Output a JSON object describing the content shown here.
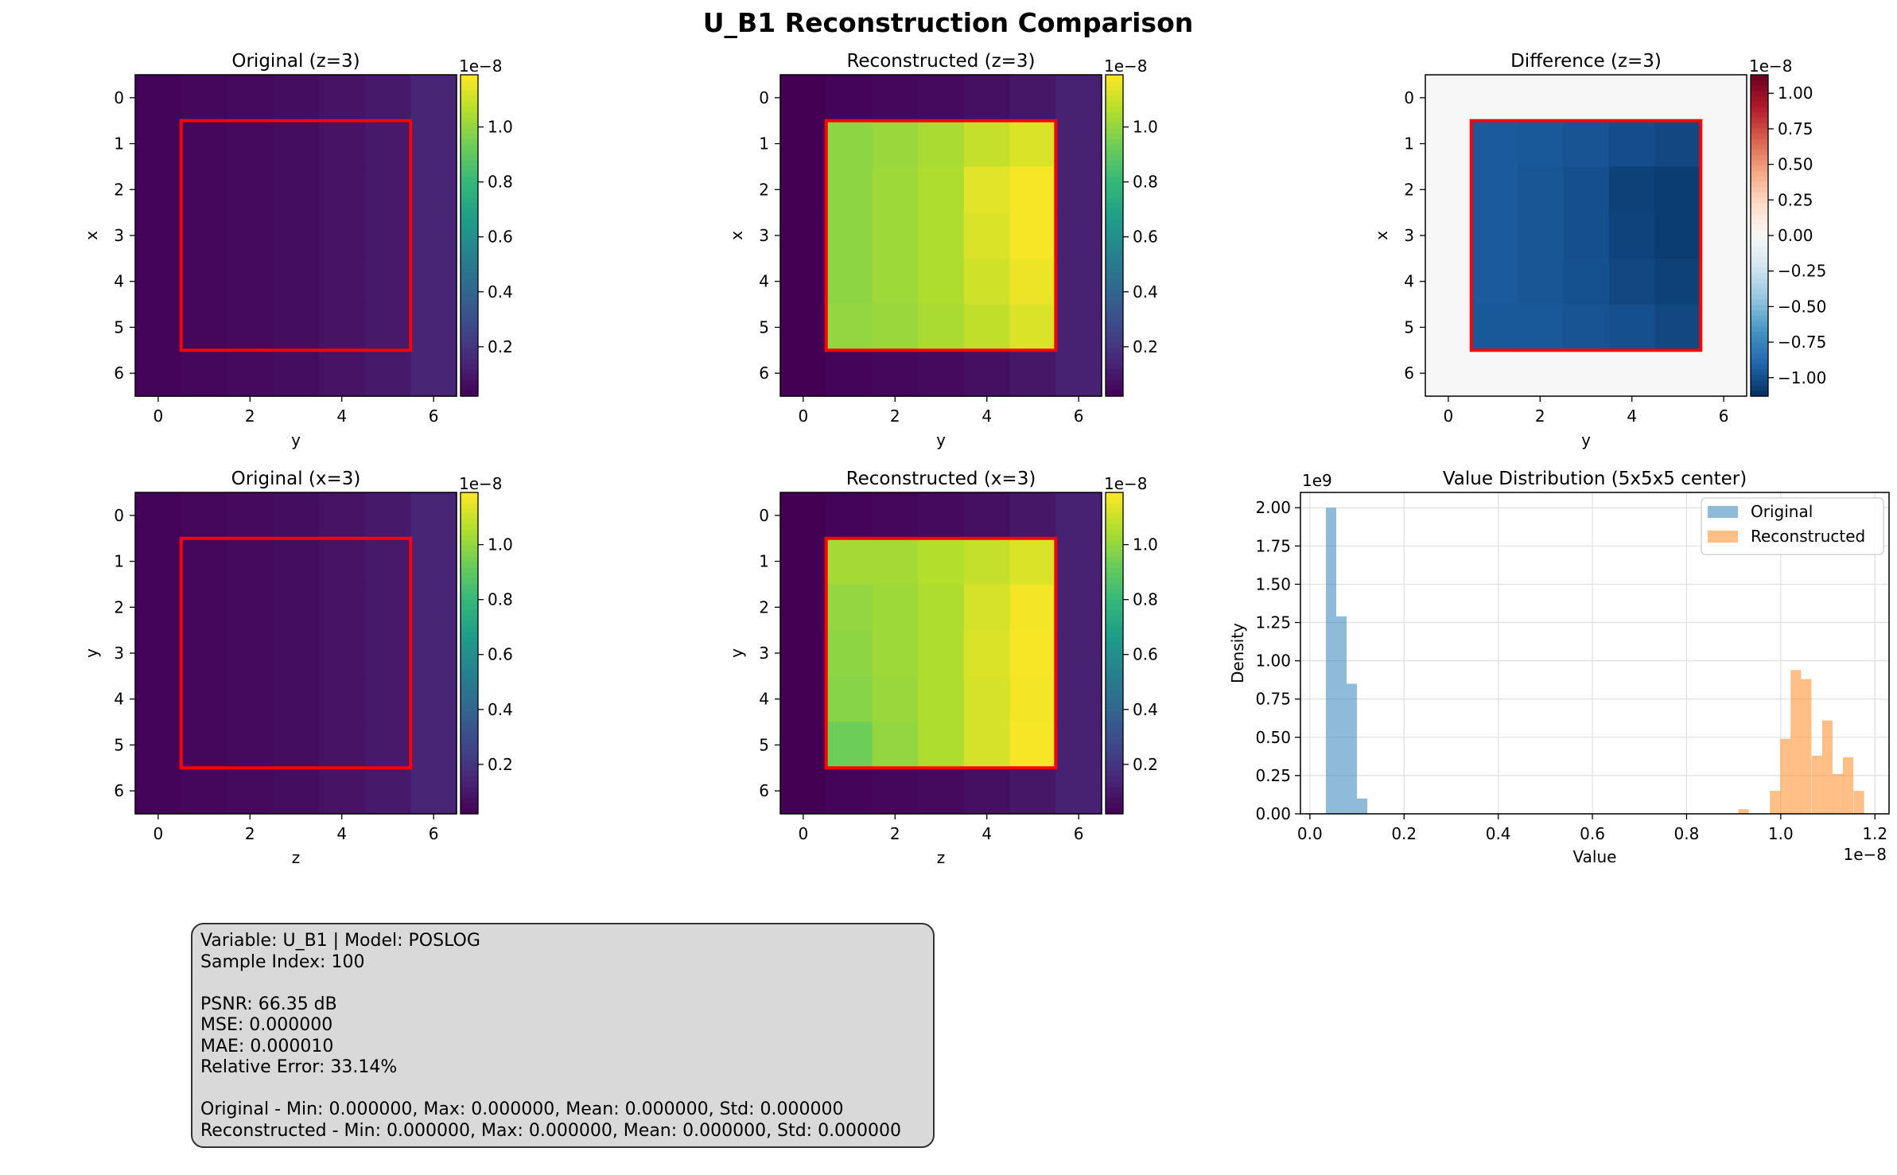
{
  "figure": {
    "title": "U_B1 Reconstruction Comparison"
  },
  "heatmap_panels": [
    {
      "id": "orig-z",
      "title": "Original (z=3)",
      "xlabel": "y",
      "ylabel": "x",
      "colormap": "viridis",
      "vmin": 0.02,
      "vmax": 1.19,
      "cbar_ticks": [
        "0.2",
        "0.4",
        "0.6",
        "0.8",
        "1.0"
      ],
      "cbar_tick_values": [
        0.2,
        0.4,
        0.6,
        0.8,
        1.0
      ],
      "cbar_exponent": "1e−8",
      "values": [
        [
          0.03,
          0.04,
          0.05,
          0.06,
          0.08,
          0.1,
          0.14
        ],
        [
          0.03,
          0.04,
          0.05,
          0.06,
          0.08,
          0.1,
          0.14
        ],
        [
          0.03,
          0.04,
          0.05,
          0.06,
          0.08,
          0.1,
          0.14
        ],
        [
          0.03,
          0.04,
          0.05,
          0.06,
          0.08,
          0.1,
          0.14
        ],
        [
          0.03,
          0.04,
          0.05,
          0.06,
          0.08,
          0.1,
          0.14
        ],
        [
          0.03,
          0.04,
          0.05,
          0.06,
          0.08,
          0.1,
          0.14
        ],
        [
          0.03,
          0.04,
          0.05,
          0.06,
          0.08,
          0.1,
          0.14
        ]
      ]
    },
    {
      "id": "recon-z",
      "title": "Reconstructed (z=3)",
      "xlabel": "y",
      "ylabel": "x",
      "colormap": "viridis",
      "vmin": 0.02,
      "vmax": 1.19,
      "cbar_ticks": [
        "0.2",
        "0.4",
        "0.6",
        "0.8",
        "1.0"
      ],
      "cbar_tick_values": [
        0.2,
        0.4,
        0.6,
        0.8,
        1.0
      ],
      "cbar_exponent": "1e−8",
      "values": [
        [
          0.02,
          0.03,
          0.04,
          0.05,
          0.07,
          0.09,
          0.13
        ],
        [
          0.02,
          0.99,
          1.01,
          1.04,
          1.09,
          1.13,
          0.13
        ],
        [
          0.02,
          0.99,
          1.02,
          1.05,
          1.14,
          1.18,
          0.13
        ],
        [
          0.02,
          0.99,
          1.02,
          1.05,
          1.13,
          1.18,
          0.13
        ],
        [
          0.02,
          0.99,
          1.02,
          1.05,
          1.11,
          1.16,
          0.13
        ],
        [
          0.02,
          1.0,
          1.01,
          1.04,
          1.08,
          1.13,
          0.13
        ],
        [
          0.02,
          0.03,
          0.04,
          0.05,
          0.07,
          0.09,
          0.13
        ]
      ]
    },
    {
      "id": "diff-z",
      "title": "Difference (z=3)",
      "xlabel": "y",
      "ylabel": "x",
      "colormap": "RdBu_r",
      "vmin": -1.13,
      "vmax": 1.13,
      "cbar_ticks": [
        "−1.00",
        "−0.75",
        "−0.50",
        "−0.25",
        "0.00",
        "0.25",
        "0.50",
        "0.75",
        "1.00"
      ],
      "cbar_tick_values": [
        -1.0,
        -0.75,
        -0.5,
        -0.25,
        0.0,
        0.25,
        0.5,
        0.75,
        1.0
      ],
      "cbar_exponent": "1e−8",
      "values": [
        [
          0,
          0,
          0,
          0,
          0,
          0,
          0
        ],
        [
          0,
          -0.95,
          -0.96,
          -0.98,
          -1.01,
          -1.03,
          0
        ],
        [
          0,
          -0.95,
          -0.97,
          -1.0,
          -1.06,
          -1.08,
          0
        ],
        [
          0,
          -0.95,
          -0.97,
          -1.0,
          -1.05,
          -1.08,
          0
        ],
        [
          0,
          -0.95,
          -0.97,
          -0.99,
          -1.03,
          -1.06,
          0
        ],
        [
          0,
          -0.96,
          -0.96,
          -0.98,
          -1.0,
          -1.03,
          0
        ],
        [
          0,
          0,
          0,
          0,
          0,
          0,
          0
        ]
      ]
    },
    {
      "id": "orig-x",
      "title": "Original (x=3)",
      "xlabel": "z",
      "ylabel": "y",
      "colormap": "viridis",
      "vmin": 0.02,
      "vmax": 1.19,
      "cbar_ticks": [
        "0.2",
        "0.4",
        "0.6",
        "0.8",
        "1.0"
      ],
      "cbar_tick_values": [
        0.2,
        0.4,
        0.6,
        0.8,
        1.0
      ],
      "cbar_exponent": "1e−8",
      "values": [
        [
          0.03,
          0.04,
          0.05,
          0.06,
          0.08,
          0.1,
          0.14
        ],
        [
          0.03,
          0.04,
          0.05,
          0.06,
          0.08,
          0.1,
          0.14
        ],
        [
          0.03,
          0.04,
          0.05,
          0.06,
          0.08,
          0.1,
          0.14
        ],
        [
          0.03,
          0.04,
          0.05,
          0.06,
          0.08,
          0.1,
          0.14
        ],
        [
          0.03,
          0.04,
          0.05,
          0.06,
          0.08,
          0.1,
          0.14
        ],
        [
          0.03,
          0.04,
          0.05,
          0.06,
          0.08,
          0.1,
          0.14
        ],
        [
          0.03,
          0.04,
          0.05,
          0.06,
          0.08,
          0.1,
          0.14
        ]
      ]
    },
    {
      "id": "recon-x",
      "title": "Reconstructed (x=3)",
      "xlabel": "z",
      "ylabel": "y",
      "colormap": "viridis",
      "vmin": 0.02,
      "vmax": 1.19,
      "cbar_ticks": [
        "0.2",
        "0.4",
        "0.6",
        "0.8",
        "1.0"
      ],
      "cbar_tick_values": [
        0.2,
        0.4,
        0.6,
        0.8,
        1.0
      ],
      "cbar_exponent": "1e−8",
      "values": [
        [
          0.02,
          0.03,
          0.04,
          0.05,
          0.07,
          0.09,
          0.13
        ],
        [
          0.02,
          1.03,
          1.03,
          1.06,
          1.09,
          1.13,
          0.13
        ],
        [
          0.02,
          1.0,
          1.02,
          1.05,
          1.12,
          1.17,
          0.13
        ],
        [
          0.02,
          0.99,
          1.02,
          1.05,
          1.13,
          1.18,
          0.13
        ],
        [
          0.02,
          0.98,
          1.01,
          1.05,
          1.12,
          1.17,
          0.13
        ],
        [
          0.02,
          0.93,
          1.0,
          1.05,
          1.12,
          1.18,
          0.13
        ],
        [
          0.02,
          0.03,
          0.04,
          0.05,
          0.07,
          0.09,
          0.13
        ]
      ]
    }
  ],
  "chart_data": {
    "type": "bar",
    "title": "Value Distribution (5x5x5 center)",
    "xlabel": "Value",
    "ylabel": "Density",
    "x_exponent": "1e−8",
    "y_exponent": "1e9",
    "xlim": [
      -0.02,
      1.23
    ],
    "ylim": [
      0,
      2.1
    ],
    "xticks": [
      0.0,
      0.2,
      0.4,
      0.6,
      0.8,
      1.0,
      1.2
    ],
    "xtick_labels": [
      "0.0",
      "0.2",
      "0.4",
      "0.6",
      "0.8",
      "1.0",
      "1.2"
    ],
    "yticks": [
      0.0,
      0.25,
      0.5,
      0.75,
      1.0,
      1.25,
      1.5,
      1.75,
      2.0
    ],
    "ytick_labels": [
      "0.00",
      "0.25",
      "0.50",
      "0.75",
      "1.00",
      "1.25",
      "1.50",
      "1.75",
      "2.00"
    ],
    "grid": true,
    "legend_position": "top-right",
    "series": [
      {
        "name": "Original",
        "color": "#1f77b4",
        "bin_width": 0.022,
        "bin_starts": [
          0.034,
          0.056,
          0.078,
          0.1
        ],
        "values": [
          2.0,
          1.29,
          0.85,
          0.1
        ]
      },
      {
        "name": "Reconstructed",
        "color": "#ff7f0e",
        "bin_width": 0.0222,
        "bin_starts": [
          0.91,
          0.977,
          0.999,
          1.021,
          1.043,
          1.066,
          1.088,
          1.11,
          1.132,
          1.155
        ],
        "values": [
          0.03,
          0.15,
          0.49,
          0.94,
          0.88,
          0.38,
          0.61,
          0.26,
          0.37,
          0.15
        ]
      }
    ]
  },
  "info_box": {
    "lines": [
      "Variable: U_B1 | Model: POSLOG",
      "Sample Index: 100",
      "",
      "PSNR: 66.35 dB",
      "MSE: 0.000000",
      "MAE: 0.000010",
      "Relative Error: 33.14%",
      "",
      "Original - Min: 0.000000, Max: 0.000000, Mean: 0.000000, Std: 0.000000",
      "Reconstructed - Min: 0.000000, Max: 0.000000, Mean: 0.000000, Std: 0.000000"
    ]
  },
  "colors": {
    "highlight_box": "#ff0000",
    "grid": "#e0e0e0",
    "info_box_bg": "#d9d9d9"
  }
}
